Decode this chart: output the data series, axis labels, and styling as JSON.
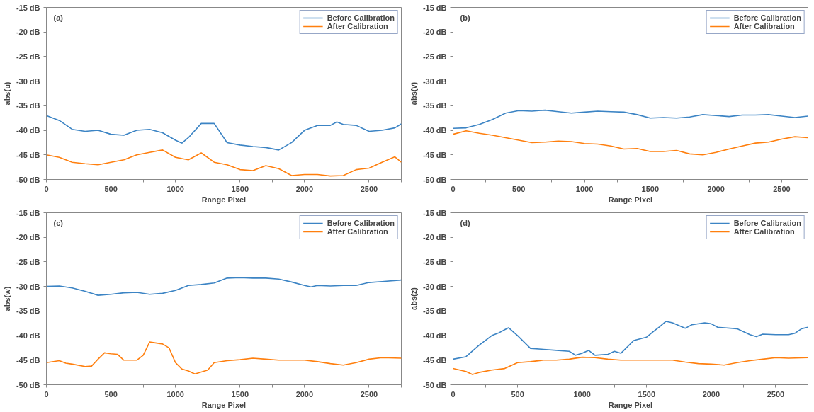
{
  "chart_data": [
    {
      "type": "line",
      "title": "(a)",
      "xlabel": "Range Pixel",
      "ylabel": "abs(u)",
      "legend": "top right",
      "grid": false,
      "xlim": [
        0,
        2750
      ],
      "ylim": [
        -50,
        -15
      ],
      "xticks": [
        0,
        {
          "value": 250,
          "label": null
        },
        500,
        {
          "value": 750,
          "label": null
        },
        1000,
        {
          "value": 1250,
          "label": null
        },
        1500,
        {
          "value": 1750,
          "label": null
        },
        2000,
        {
          "value": 2250,
          "label": null
        },
        2500,
        {
          "value": 2750,
          "label": null
        }
      ],
      "yticks": [
        {
          "value": -50,
          "label": "-50 dB"
        },
        {
          "value": -45,
          "label": "-45 dB"
        },
        {
          "value": -40,
          "label": "-40 dB"
        },
        {
          "value": -35,
          "label": "-35 dB"
        },
        {
          "value": -30,
          "label": "-30 dB"
        },
        {
          "value": -25,
          "label": "-25 dB"
        },
        {
          "value": -20,
          "label": "-20 dB"
        },
        {
          "value": -15,
          "label": "-15 dB"
        }
      ],
      "series": [
        {
          "name": "Before Calibration",
          "color": "#3c84c4",
          "x": [
            0,
            100,
            200,
            300,
            400,
            500,
            600,
            700,
            800,
            900,
            1000,
            1050,
            1100,
            1200,
            1300,
            1400,
            1500,
            1600,
            1700,
            1800,
            1900,
            2000,
            2100,
            2200,
            2250,
            2300,
            2400,
            2500,
            2600,
            2700,
            2750
          ],
          "values": [
            -37,
            -38,
            -39.8,
            -40.2,
            -40,
            -40.8,
            -41,
            -40,
            -39.8,
            -40.5,
            -42,
            -42.6,
            -41.5,
            -38.6,
            -38.6,
            -42.5,
            -43,
            -43.3,
            -43.5,
            -44,
            -42.5,
            -40,
            -39,
            -39,
            -38.3,
            -38.8,
            -39,
            -40.2,
            -40,
            -39.5,
            -38.7
          ]
        },
        {
          "name": "After Calibration",
          "color": "#ff7f0e",
          "x": [
            0,
            100,
            200,
            300,
            400,
            500,
            600,
            700,
            800,
            900,
            1000,
            1100,
            1200,
            1300,
            1400,
            1500,
            1600,
            1700,
            1800,
            1900,
            2000,
            2100,
            2200,
            2300,
            2400,
            2500,
            2600,
            2700,
            2750
          ],
          "values": [
            -45,
            -45.5,
            -46.5,
            -46.8,
            -47,
            -46.5,
            -46,
            -45,
            -44.5,
            -44,
            -45.5,
            -46,
            -44.6,
            -46.5,
            -47,
            -48,
            -48.2,
            -47.2,
            -47.8,
            -49.2,
            -49,
            -49,
            -49.3,
            -49.2,
            -48,
            -47.7,
            -46.5,
            -45.4,
            -46.5
          ]
        }
      ]
    },
    {
      "type": "line",
      "title": "(b)",
      "xlabel": "Range Pixel",
      "ylabel": "abs(v)",
      "legend": "top right",
      "grid": false,
      "xlim": [
        0,
        2700
      ],
      "ylim": [
        -50,
        -15
      ],
      "xticks": [
        0,
        {
          "value": 250,
          "label": null
        },
        500,
        {
          "value": 750,
          "label": null
        },
        1000,
        {
          "value": 1250,
          "label": null
        },
        1500,
        {
          "value": 1750,
          "label": null
        },
        2000,
        {
          "value": 2250,
          "label": null
        },
        2500
      ],
      "yticks": [
        {
          "value": -50,
          "label": "-50 dB"
        },
        {
          "value": -45,
          "label": "-45 dB"
        },
        {
          "value": -40,
          "label": "-40 dB"
        },
        {
          "value": -35,
          "label": "-35 dB"
        },
        {
          "value": -30,
          "label": "-30 dB"
        },
        {
          "value": -25,
          "label": "-25 dB"
        },
        {
          "value": -20,
          "label": "-20 dB"
        },
        {
          "value": -15,
          "label": "-15 dB"
        }
      ],
      "series": [
        {
          "name": "Before Calibration",
          "color": "#3c84c4",
          "x": [
            0,
            100,
            200,
            300,
            400,
            500,
            600,
            700,
            800,
            900,
            1000,
            1100,
            1200,
            1300,
            1400,
            1500,
            1600,
            1700,
            1800,
            1900,
            2000,
            2100,
            2200,
            2300,
            2400,
            2500,
            2600,
            2700
          ],
          "values": [
            -39.6,
            -39.5,
            -38.8,
            -37.8,
            -36.5,
            -36,
            -36.1,
            -35.9,
            -36.2,
            -36.5,
            -36.3,
            -36.1,
            -36.2,
            -36.3,
            -36.8,
            -37.5,
            -37.4,
            -37.5,
            -37.3,
            -36.8,
            -37,
            -37.2,
            -36.9,
            -36.9,
            -36.8,
            -37.1,
            -37.4,
            -37.1
          ]
        },
        {
          "name": "After Calibration",
          "color": "#ff7f0e",
          "x": [
            0,
            100,
            200,
            300,
            400,
            500,
            600,
            700,
            800,
            900,
            1000,
            1100,
            1200,
            1300,
            1400,
            1500,
            1600,
            1700,
            1800,
            1900,
            2000,
            2100,
            2200,
            2300,
            2400,
            2500,
            2600,
            2700
          ],
          "values": [
            -40.8,
            -40.1,
            -40.6,
            -41,
            -41.5,
            -42,
            -42.5,
            -42.4,
            -42.2,
            -42.3,
            -42.7,
            -42.8,
            -43.2,
            -43.8,
            -43.7,
            -44.3,
            -44.3,
            -44.1,
            -44.8,
            -45,
            -44.5,
            -43.8,
            -43.2,
            -42.6,
            -42.4,
            -41.8,
            -41.3,
            -41.5
          ]
        }
      ]
    },
    {
      "type": "line",
      "title": "(c)",
      "xlabel": "Range Pixel",
      "ylabel": "abs(w)",
      "legend": "top right",
      "grid": false,
      "xlim": [
        0,
        2750
      ],
      "ylim": [
        -50,
        -15
      ],
      "xticks": [
        0,
        {
          "value": 250,
          "label": null
        },
        500,
        {
          "value": 750,
          "label": null
        },
        1000,
        {
          "value": 1250,
          "label": null
        },
        1500,
        {
          "value": 1750,
          "label": null
        },
        2000,
        {
          "value": 2250,
          "label": null
        },
        2500,
        {
          "value": 2750,
          "label": null
        }
      ],
      "yticks": [
        {
          "value": -50,
          "label": "-50 dB"
        },
        {
          "value": -45,
          "label": "-45 dB"
        },
        {
          "value": -40,
          "label": "-40 dB"
        },
        {
          "value": -35,
          "label": "-35 dB"
        },
        {
          "value": -30,
          "label": "-30 dB"
        },
        {
          "value": -25,
          "label": "-25 dB"
        },
        {
          "value": -20,
          "label": "-20 dB"
        },
        {
          "value": -15,
          "label": "-15 dB"
        }
      ],
      "series": [
        {
          "name": "Before Calibration",
          "color": "#3c84c4",
          "x": [
            0,
            100,
            200,
            300,
            400,
            500,
            600,
            700,
            800,
            900,
            1000,
            1100,
            1200,
            1300,
            1400,
            1500,
            1600,
            1700,
            1800,
            1900,
            2000,
            2050,
            2100,
            2200,
            2300,
            2400,
            2500,
            2600,
            2750
          ],
          "values": [
            -30,
            -29.9,
            -30.3,
            -31,
            -31.8,
            -31.6,
            -31.3,
            -31.2,
            -31.6,
            -31.4,
            -30.8,
            -29.8,
            -29.6,
            -29.3,
            -28.3,
            -28.2,
            -28.3,
            -28.3,
            -28.5,
            -29.1,
            -29.8,
            -30.1,
            -29.8,
            -29.9,
            -29.8,
            -29.8,
            -29.2,
            -29,
            -28.7
          ]
        },
        {
          "name": "After Calibration",
          "color": "#ff7f0e",
          "x": [
            0,
            100,
            150,
            200,
            300,
            350,
            400,
            450,
            500,
            550,
            600,
            700,
            750,
            800,
            900,
            950,
            1000,
            1050,
            1100,
            1150,
            1250,
            1300,
            1400,
            1500,
            1600,
            1700,
            1800,
            1900,
            2000,
            2100,
            2200,
            2300,
            2400,
            2500,
            2600,
            2750
          ],
          "values": [
            -45.5,
            -45.1,
            -45.6,
            -45.8,
            -46.3,
            -46.2,
            -44.8,
            -43.5,
            -43.7,
            -43.8,
            -45,
            -45,
            -44,
            -41.3,
            -41.7,
            -42.5,
            -45.5,
            -46.8,
            -47.2,
            -47.8,
            -47,
            -45.5,
            -45.1,
            -44.9,
            -44.6,
            -44.8,
            -45,
            -45,
            -45,
            -45.3,
            -45.7,
            -46,
            -45.5,
            -44.8,
            -44.5,
            -44.6
          ]
        }
      ]
    },
    {
      "type": "line",
      "title": "(d)",
      "xlabel": "Range Pixel",
      "ylabel": "abs(z)",
      "legend": "top right",
      "grid": false,
      "xlim": [
        0,
        2750
      ],
      "ylim": [
        -50,
        -15
      ],
      "xticks": [
        0,
        {
          "value": 250,
          "label": null
        },
        500,
        {
          "value": 750,
          "label": null
        },
        1000,
        {
          "value": 1250,
          "label": null
        },
        1500,
        {
          "value": 1750,
          "label": null
        },
        2000,
        {
          "value": 2250,
          "label": null
        },
        2500,
        {
          "value": 2750,
          "label": null
        }
      ],
      "yticks": [
        {
          "value": -50,
          "label": "-50 dB"
        },
        {
          "value": -45,
          "label": "-45 dB"
        },
        {
          "value": -40,
          "label": "-40 dB"
        },
        {
          "value": -35,
          "label": "-35 dB"
        },
        {
          "value": -30,
          "label": "-30 dB"
        },
        {
          "value": -25,
          "label": "-25 dB"
        },
        {
          "value": -20,
          "label": "-20 dB"
        },
        {
          "value": -15,
          "label": "-15 dB"
        }
      ],
      "series": [
        {
          "name": "Before Calibration",
          "color": "#3c84c4",
          "x": [
            0,
            100,
            200,
            300,
            350,
            400,
            430,
            500,
            600,
            700,
            800,
            900,
            950,
            1000,
            1050,
            1100,
            1200,
            1250,
            1300,
            1400,
            1500,
            1550,
            1600,
            1650,
            1700,
            1800,
            1850,
            1950,
            2000,
            2050,
            2200,
            2300,
            2350,
            2400,
            2500,
            2600,
            2650,
            2700,
            2750
          ],
          "values": [
            -44.8,
            -44.3,
            -42,
            -40,
            -39.5,
            -38.8,
            -38.4,
            -40,
            -42.6,
            -42.8,
            -43,
            -43.2,
            -44,
            -43.6,
            -43,
            -44,
            -43.8,
            -43.2,
            -43.6,
            -41,
            -40.3,
            -39.2,
            -38.2,
            -37.1,
            -37.4,
            -38.5,
            -37.8,
            -37.4,
            -37.6,
            -38.3,
            -38.6,
            -39.8,
            -40.2,
            -39.7,
            -39.8,
            -39.8,
            -39.5,
            -38.6,
            -38.3
          ]
        },
        {
          "name": "After Calibration",
          "color": "#ff7f0e",
          "x": [
            0,
            100,
            150,
            200,
            300,
            400,
            500,
            600,
            700,
            800,
            900,
            1000,
            1100,
            1200,
            1300,
            1400,
            1500,
            1600,
            1700,
            1800,
            1900,
            2000,
            2100,
            2200,
            2300,
            2400,
            2500,
            2600,
            2750
          ],
          "values": [
            -46.7,
            -47.3,
            -47.9,
            -47.5,
            -47,
            -46.7,
            -45.5,
            -45.3,
            -45,
            -45,
            -44.8,
            -44.4,
            -44.5,
            -44.8,
            -45,
            -45,
            -45,
            -45,
            -45,
            -45.4,
            -45.7,
            -45.8,
            -46,
            -45.5,
            -45.1,
            -44.8,
            -44.5,
            -44.6,
            -44.5
          ]
        }
      ]
    }
  ]
}
